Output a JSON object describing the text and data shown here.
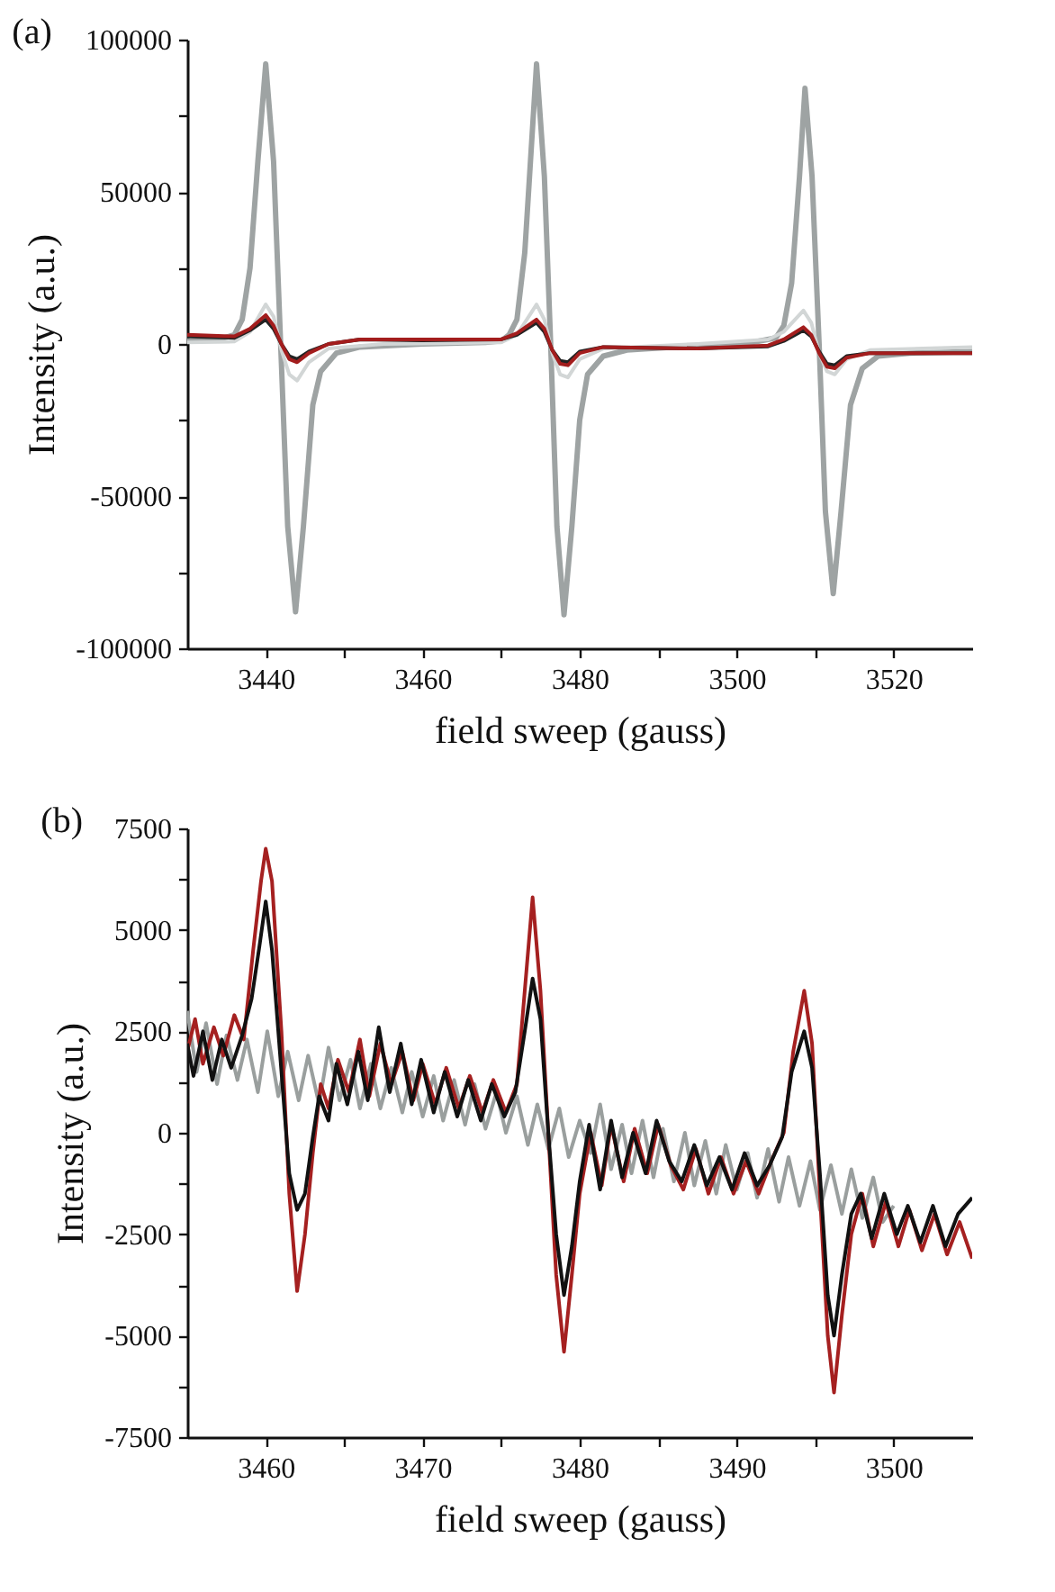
{
  "chart_data": [
    {
      "type": "line",
      "title": "(a)",
      "xlabel": "field sweep (gauss)",
      "ylabel": "Intensity (a.u.)",
      "xlim": [
        3430,
        3530
      ],
      "xticks": [
        3440,
        {
          "value": 3450,
          "label": null
        },
        3460,
        {
          "value": 3470,
          "label": null
        },
        3480,
        {
          "value": 3490,
          "label": null
        },
        3500,
        {
          "value": 3510,
          "label": null
        },
        3520
      ],
      "ylim": [
        -100000,
        100000
      ],
      "yticks": [
        -100000,
        {
          "value": -75000,
          "label": null
        },
        -50000,
        {
          "value": -25000,
          "label": null
        },
        0,
        {
          "value": 25000,
          "label": null
        },
        50000,
        {
          "value": 75000,
          "label": null
        },
        100000
      ],
      "grid": false,
      "series": [
        {
          "color": "#9ea3a3",
          "x": [
            3430,
            3434,
            3436,
            3437,
            3438,
            3439,
            3440,
            3441,
            3441.9,
            3442.8,
            3443.8,
            3444.8,
            3446,
            3447,
            3449,
            3452,
            3460,
            3468,
            3470,
            3471,
            3472,
            3473,
            3474.5,
            3475.5,
            3476.3,
            3477.1,
            3478,
            3479,
            3480,
            3481,
            3483,
            3486,
            3495,
            3502,
            3505,
            3506,
            3507,
            3508,
            3508.7,
            3509.6,
            3510.5,
            3511.3,
            3512.3,
            3513.3,
            3514.5,
            3516,
            3518,
            3522,
            3530
          ],
          "values": [
            1000,
            1500,
            3000,
            8000,
            25000,
            60000,
            92000,
            60000,
            0,
            -60000,
            -88000,
            -60000,
            -20000,
            -9000,
            -3000,
            -1000,
            0,
            500,
            1000,
            3000,
            8000,
            30000,
            92000,
            55000,
            0,
            -60000,
            -89000,
            -60000,
            -25000,
            -10000,
            -4000,
            -2000,
            -500,
            500,
            2000,
            6000,
            20000,
            55000,
            84000,
            55000,
            0,
            -55000,
            -82000,
            -55000,
            -20000,
            -8000,
            -4000,
            -3000,
            -2500
          ]
        },
        {
          "color": "#d2d6d6",
          "x": [
            3430,
            3436,
            3438,
            3440,
            3441,
            3442,
            3443,
            3444,
            3445.5,
            3448,
            3455,
            3470,
            3472,
            3474.5,
            3475.5,
            3476.5,
            3477.5,
            3478.5,
            3480,
            3483,
            3495,
            3504,
            3506,
            3508.5,
            3509.5,
            3510.5,
            3511.5,
            3512.5,
            3514,
            3517,
            3530
          ],
          "values": [
            500,
            800,
            4000,
            13000,
            9000,
            -2000,
            -10000,
            -12000,
            -6000,
            -1500,
            0,
            500,
            3000,
            13000,
            8000,
            -3000,
            -10000,
            -11000,
            -5000,
            -1500,
            0,
            1500,
            4000,
            11000,
            7000,
            -3000,
            -9000,
            -10000,
            -5000,
            -2000,
            -1000
          ]
        },
        {
          "color": "#222222",
          "x": [
            3430,
            3436,
            3438,
            3440,
            3441,
            3442,
            3443,
            3444,
            3445.5,
            3448,
            3452,
            3460,
            3470,
            3472,
            3474.5,
            3475.5,
            3476.5,
            3477.5,
            3478.5,
            3480,
            3483,
            3495,
            3504,
            3506,
            3508.5,
            3509.5,
            3510.5,
            3511.5,
            3512.5,
            3514,
            3517,
            3530
          ],
          "values": [
            2500,
            2000,
            4500,
            8000,
            5000,
            0,
            -4000,
            -5000,
            -2500,
            0,
            1500,
            1200,
            1500,
            3000,
            7000,
            4000,
            -2000,
            -5500,
            -6000,
            -2500,
            -1000,
            -1500,
            -800,
            1000,
            4500,
            2500,
            -2500,
            -6500,
            -7000,
            -4000,
            -3000,
            -3000
          ]
        },
        {
          "color": "#a31d1d",
          "x": [
            3430,
            3436,
            3438,
            3440,
            3441,
            3442,
            3443,
            3444,
            3445.5,
            3448,
            3452,
            3460,
            3470,
            3472,
            3474.5,
            3475.5,
            3476.5,
            3477.5,
            3478.5,
            3480,
            3483,
            3495,
            3504,
            3506,
            3508.5,
            3509.5,
            3510.5,
            3511.5,
            3512.5,
            3514,
            3517,
            3530
          ],
          "values": [
            3000,
            2500,
            5000,
            9500,
            6000,
            0,
            -5000,
            -6000,
            -3000,
            0,
            1500,
            1500,
            1500,
            3500,
            8000,
            5000,
            -2000,
            -6500,
            -7000,
            -3000,
            -1000,
            -1500,
            -500,
            1500,
            5500,
            3000,
            -3000,
            -7500,
            -8000,
            -4500,
            -3000,
            -3000
          ]
        }
      ]
    },
    {
      "type": "line",
      "title": "(b)",
      "xlabel": "field sweep (gauss)",
      "ylabel": "Intensity (a.u.)",
      "xlim": [
        3455,
        3505
      ],
      "xticks": [
        3460,
        {
          "value": 3465,
          "label": null
        },
        3470,
        {
          "value": 3475,
          "label": null
        },
        3480,
        {
          "value": 3485,
          "label": null
        },
        3490,
        {
          "value": 3495,
          "label": null
        },
        3500
      ],
      "ylim": [
        -7500,
        7500
      ],
      "yticks": [
        -7500,
        {
          "value": -6250,
          "label": null
        },
        -5000,
        {
          "value": -3750,
          "label": null
        },
        -2500,
        {
          "value": -1250,
          "label": null
        },
        0,
        {
          "value": 1250,
          "label": null
        },
        2500,
        {
          "value": 3750,
          "label": null
        },
        5000,
        {
          "value": 6250,
          "label": null
        },
        7500
      ],
      "grid": false,
      "series": [
        {
          "color": "#9a9f9e",
          "x": [
            3455,
            3455.6,
            3456.2,
            3456.9,
            3457.5,
            3458.2,
            3458.8,
            3459.5,
            3460.1,
            3460.8,
            3461.4,
            3462.1,
            3462.7,
            3463.4,
            3464,
            3464.7,
            3465.4,
            3466,
            3466.7,
            3467.3,
            3468,
            3468.7,
            3469.3,
            3470,
            3470.7,
            3471.3,
            3472,
            3472.7,
            3473.3,
            3474,
            3474.7,
            3475.3,
            3476,
            3476.7,
            3477.3,
            3478,
            3478.7,
            3479.3,
            3480,
            3480.7,
            3481.3,
            3482,
            3482.7,
            3483.3,
            3484,
            3484.7,
            3485.3,
            3486,
            3486.7,
            3487.3,
            3488,
            3488.7,
            3489.3,
            3490,
            3490.7,
            3491.3,
            3492,
            3492.7,
            3493.3,
            3494,
            3494.7,
            3495.3,
            3496,
            3496.7,
            3497.3,
            3498,
            3498.7,
            3499.3,
            3500
          ],
          "values": [
            3000,
            1500,
            2700,
            1200,
            2400,
            1300,
            2300,
            1000,
            2500,
            900,
            2000,
            800,
            1900,
            700,
            2100,
            800,
            1800,
            600,
            1700,
            600,
            1600,
            500,
            1500,
            400,
            1400,
            300,
            1300,
            200,
            1200,
            100,
            1000,
            0,
            900,
            -300,
            700,
            -400,
            600,
            -600,
            300,
            -500,
            700,
            -900,
            200,
            -1000,
            300,
            -1100,
            100,
            -1200,
            0,
            -1300,
            -200,
            -1500,
            -300,
            -1400,
            -500,
            -1600,
            -400,
            -1700,
            -600,
            -1800,
            -700,
            -1900,
            -800,
            -2000,
            -900,
            -2100,
            -1100,
            -2200,
            -1800
          ]
        },
        {
          "color": "#a52020",
          "x": [
            3455,
            3455.5,
            3456,
            3456.7,
            3457.3,
            3458,
            3458.6,
            3459.2,
            3459.7,
            3460,
            3460.4,
            3461,
            3461.5,
            3462,
            3462.5,
            3463,
            3463.5,
            3464,
            3464.6,
            3465.3,
            3466,
            3466.6,
            3467.3,
            3468,
            3468.7,
            3469.4,
            3470,
            3470.8,
            3471.5,
            3472.3,
            3473,
            3473.8,
            3474.5,
            3475.3,
            3476,
            3476.5,
            3477,
            3477.5,
            3478,
            3478.5,
            3479,
            3479.5,
            3480,
            3480.7,
            3481.4,
            3482,
            3482.8,
            3483.5,
            3484.3,
            3485,
            3485.8,
            3486.6,
            3487.4,
            3488.2,
            3489,
            3489.8,
            3490.6,
            3491.4,
            3492.2,
            3493,
            3493.6,
            3494.3,
            3494.8,
            3495.3,
            3495.8,
            3496.2,
            3496.7,
            3497.3,
            3498,
            3498.7,
            3499.5,
            3500.3,
            3501,
            3501.8,
            3502.6,
            3503.4,
            3504.2,
            3505
          ],
          "values": [
            2000,
            2800,
            1700,
            2600,
            1900,
            2900,
            2300,
            4500,
            6200,
            7000,
            6200,
            2500,
            -1500,
            -3900,
            -2500,
            -500,
            1200,
            600,
            1800,
            1000,
            2300,
            900,
            2200,
            1200,
            2000,
            800,
            1700,
            700,
            1600,
            600,
            1400,
            500,
            1300,
            500,
            1200,
            3500,
            5800,
            3500,
            0,
            -3500,
            -5400,
            -3500,
            -1500,
            0,
            -1300,
            200,
            -1200,
            100,
            -1000,
            200,
            -800,
            -1400,
            -400,
            -1500,
            -600,
            -1500,
            -700,
            -1500,
            -700,
            0,
            2000,
            3500,
            2200,
            -1500,
            -5000,
            -6400,
            -4500,
            -2500,
            -1500,
            -2800,
            -1700,
            -2800,
            -1900,
            -2900,
            -2000,
            -3000,
            -2200,
            -3100
          ]
        },
        {
          "color": "#111111",
          "x": [
            3455,
            3455.4,
            3456,
            3456.6,
            3457.2,
            3457.8,
            3458.5,
            3459.1,
            3459.6,
            3460,
            3460.4,
            3461,
            3461.5,
            3462,
            3462.5,
            3463,
            3463.4,
            3464,
            3464.5,
            3465.2,
            3465.9,
            3466.5,
            3467.2,
            3467.9,
            3468.6,
            3469.3,
            3469.9,
            3470.7,
            3471.4,
            3472.2,
            3472.9,
            3473.7,
            3474.4,
            3475.2,
            3475.9,
            3476.5,
            3477,
            3477.5,
            3478,
            3478.5,
            3479,
            3479.5,
            3480,
            3480.6,
            3481.3,
            3482,
            3482.7,
            3483.4,
            3484.2,
            3484.9,
            3485.7,
            3486.5,
            3487.3,
            3488.1,
            3488.9,
            3489.7,
            3490.5,
            3491.3,
            3492.1,
            3492.9,
            3493.5,
            3494.3,
            3494.8,
            3495.3,
            3495.8,
            3496.2,
            3496.7,
            3497.3,
            3497.9,
            3498.6,
            3499.4,
            3500.2,
            3500.9,
            3501.7,
            3502.5,
            3503.3,
            3504.1,
            3505
          ],
          "values": [
            2200,
            1400,
            2500,
            1300,
            2300,
            1600,
            2400,
            3300,
            4600,
            5700,
            4500,
            1500,
            -1000,
            -1900,
            -1500,
            -100,
            900,
            300,
            1700,
            700,
            2000,
            800,
            2600,
            1000,
            2200,
            700,
            1800,
            500,
            1500,
            400,
            1300,
            300,
            1200,
            400,
            1000,
            2500,
            3800,
            2800,
            0,
            -2500,
            -4000,
            -2800,
            -1200,
            200,
            -1400,
            300,
            -1100,
            0,
            -1000,
            300,
            -700,
            -1200,
            -300,
            -1300,
            -600,
            -1400,
            -500,
            -1300,
            -800,
            -100,
            1500,
            2500,
            1600,
            -1000,
            -4000,
            -5000,
            -3500,
            -2000,
            -1500,
            -2600,
            -1500,
            -2500,
            -1800,
            -2700,
            -1800,
            -2800,
            -2000,
            -1600
          ]
        }
      ]
    }
  ]
}
